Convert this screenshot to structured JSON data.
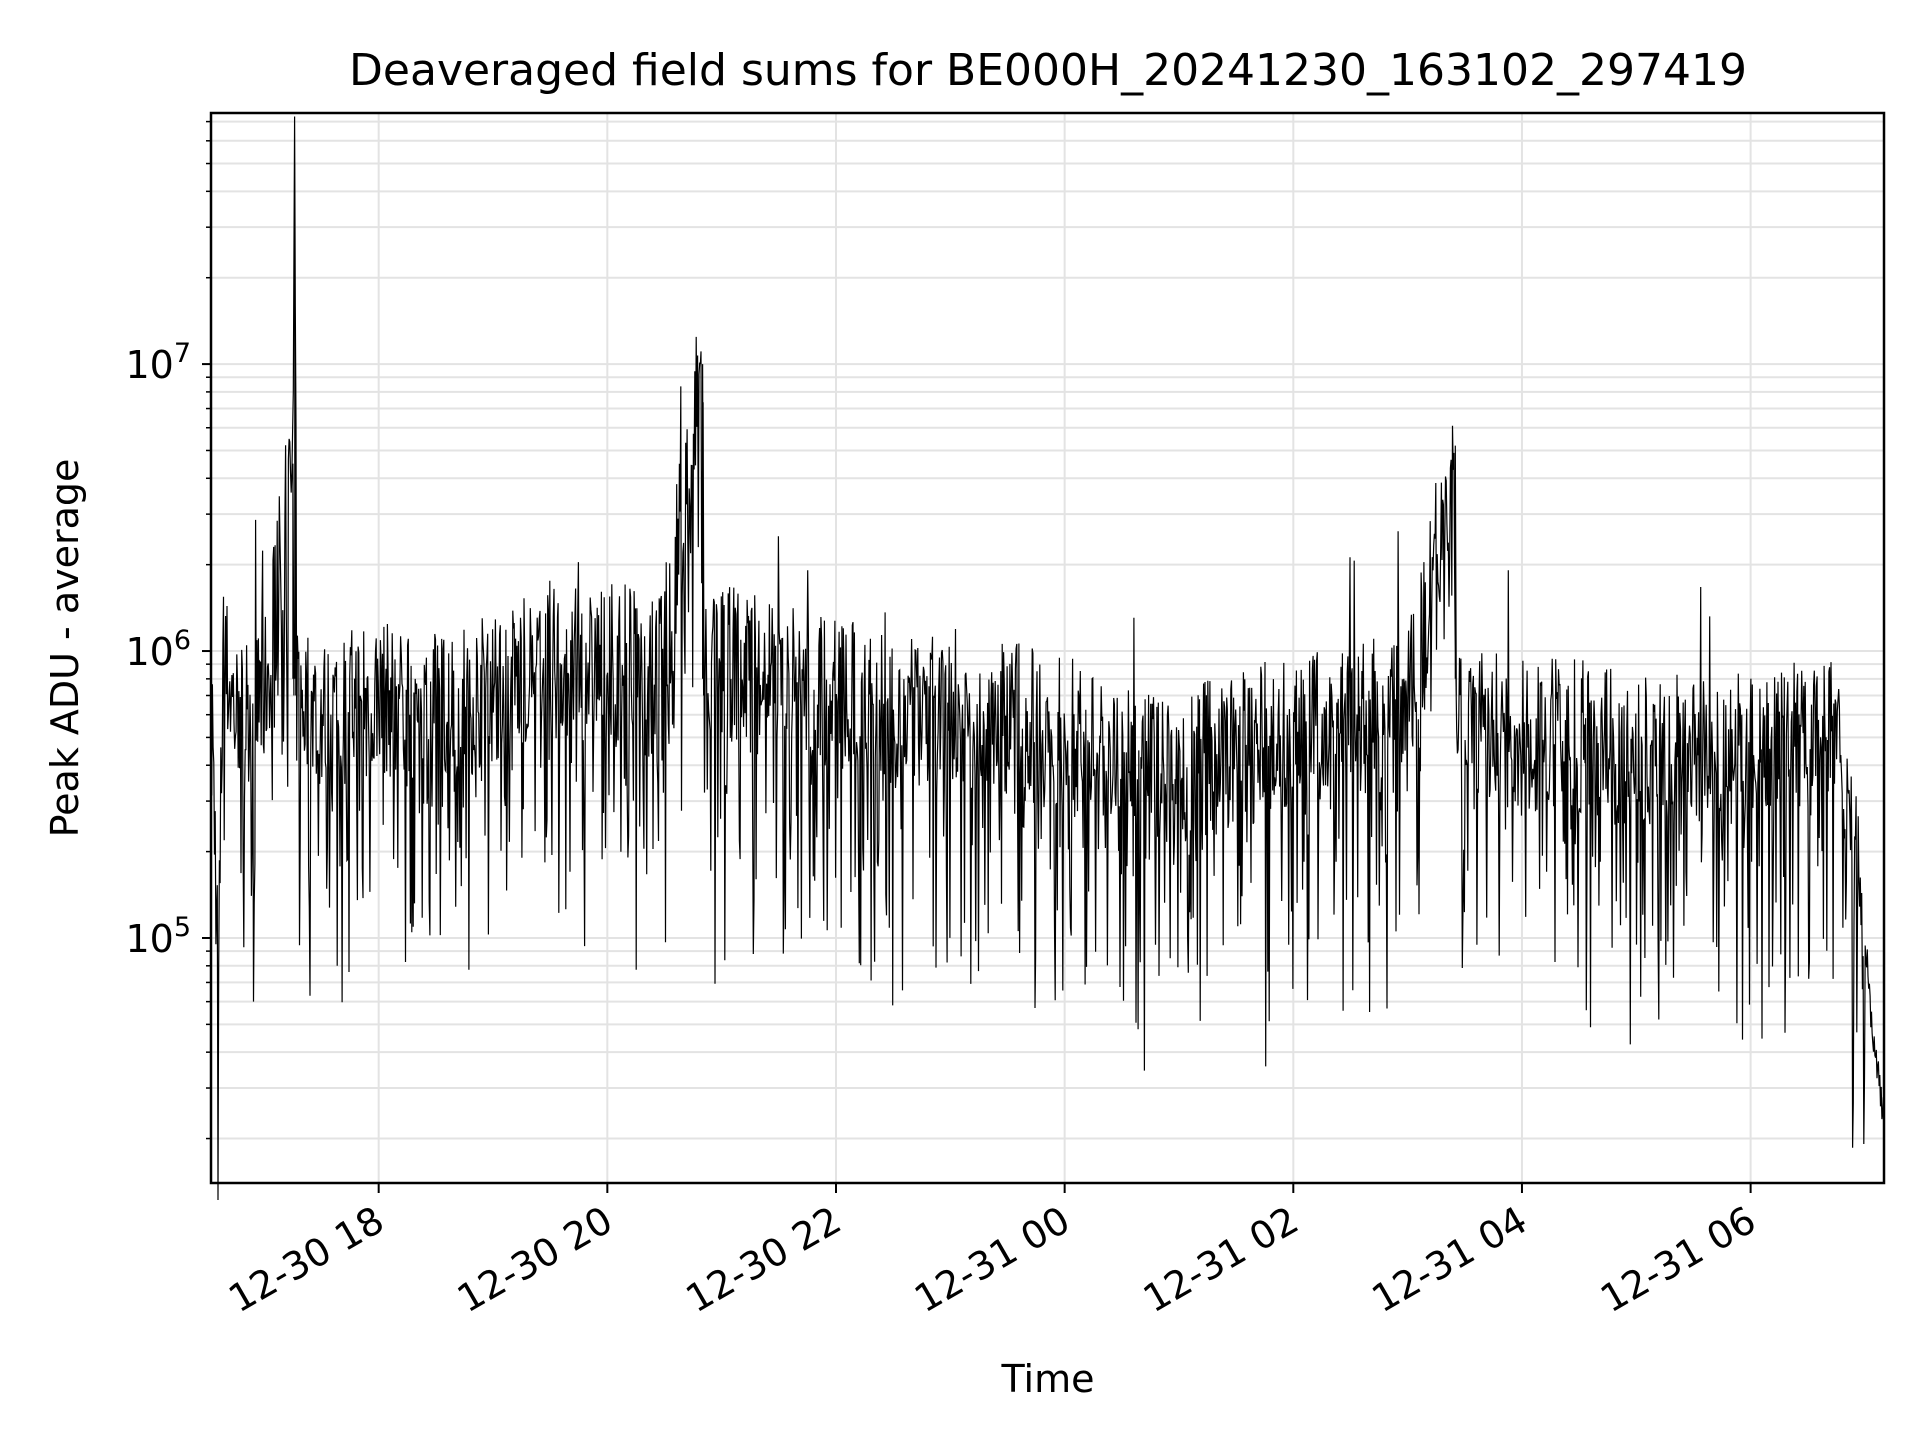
{
  "chart_data": {
    "type": "line",
    "title": "Deaveraged field sums for BE000H_20241230_163102_297419",
    "xlabel": "Time",
    "ylabel": "Peak ADU - average",
    "x_ticks": [
      "12-30 18",
      "12-30 20",
      "12-30 22",
      "12-31 00",
      "12-31 02",
      "12-31 04",
      "12-31 06"
    ],
    "y_ticks": [
      "10^5",
      "10^6",
      "10^7"
    ],
    "y_scale": "log",
    "xlim": [
      "2024-12-30 16:32",
      "2024-12-31 07:10"
    ],
    "ylim": [
      14000,
      75000000
    ],
    "grid": true,
    "legend": "none",
    "line_color": "#000000",
    "series": [
      {
        "values_note_omitted": true,
        "x": [
          "2024-12-30 16:32",
          "2024-12-30 16:36",
          "2024-12-30 16:38",
          "2024-12-30 16:45",
          "2024-12-30 17:00",
          "2024-12-30 17:15",
          "2024-12-30 17:16",
          "2024-12-30 17:17",
          "2024-12-30 17:30",
          "2024-12-30 18:00",
          "2024-12-30 18:20",
          "2024-12-30 18:50",
          "2024-12-30 19:30",
          "2024-12-30 20:00",
          "2024-12-30 20:30",
          "2024-12-30 20:50",
          "2024-12-30 20:51",
          "2024-12-30 20:52",
          "2024-12-30 21:20",
          "2024-12-30 22:00",
          "2024-12-30 22:40",
          "2024-12-30 23:30",
          "2024-12-31 00:00",
          "2024-12-31 00:30",
          "2024-12-31 01:00",
          "2024-12-31 01:30",
          "2024-12-31 02:00",
          "2024-12-31 02:30",
          "2024-12-31 03:00",
          "2024-12-31 03:25",
          "2024-12-31 03:26",
          "2024-12-31 03:27",
          "2024-12-31 04:00",
          "2024-12-31 04:30",
          "2024-12-31 05:00",
          "2024-12-31 05:30",
          "2024-12-31 06:00",
          "2024-12-31 06:30",
          "2024-12-31 06:45",
          "2024-12-31 07:00",
          "2024-12-31 07:05",
          "2024-12-31 07:10"
        ],
        "y": [
          900000,
          65000,
          1000000,
          600000,
          700000,
          4500000,
          50000000,
          700000,
          600000,
          700000,
          600000,
          700000,
          900000,
          900000,
          1000000,
          10000000,
          900000,
          900000,
          900000,
          700000,
          600000,
          600000,
          500000,
          400000,
          400000,
          450000,
          500000,
          600000,
          600000,
          5200000,
          600000,
          600000,
          500000,
          500000,
          450000,
          450000,
          450000,
          500000,
          600000,
          100000,
          40000,
          25000
        ]
      }
    ]
  }
}
